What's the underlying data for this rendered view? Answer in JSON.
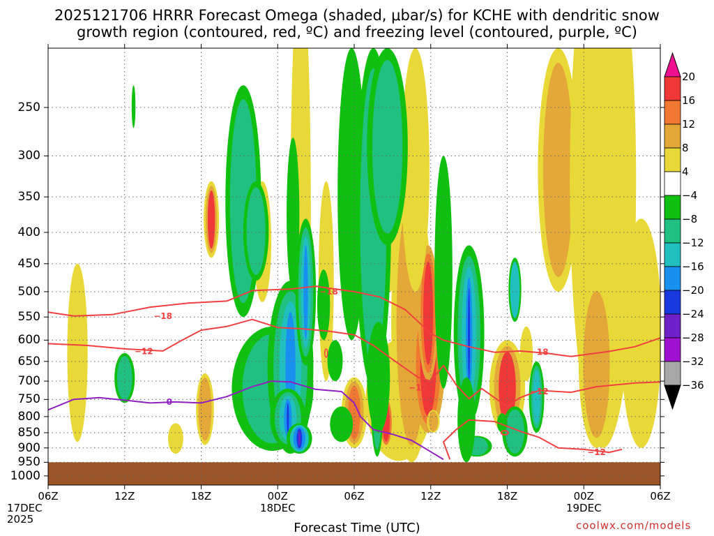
{
  "chart_data": {
    "type": "heatmap",
    "title_line1": "2025121706 HRRR Forecast Omega (shaded, μbar/s) for KCHE with dendritic snow",
    "title_line2": "growth region (contoured, red, ºC) and freezing level (contoured, purple, ºC)",
    "xlabel": "Forecast Time (UTC)",
    "credit": "coolwx.com/models",
    "x_ticks": [
      {
        "label": "06Z",
        "hours": 0,
        "sub": [
          "17DEC",
          "2025"
        ]
      },
      {
        "label": "12Z",
        "hours": 6
      },
      {
        "label": "18Z",
        "hours": 12
      },
      {
        "label": "00Z",
        "hours": 18,
        "sub": [
          "18DEC"
        ]
      },
      {
        "label": "06Z",
        "hours": 24
      },
      {
        "label": "12Z",
        "hours": 30
      },
      {
        "label": "18Z",
        "hours": 36
      },
      {
        "label": "00Z",
        "hours": 42,
        "sub": [
          "19DEC"
        ]
      },
      {
        "label": "06Z",
        "hours": 48
      }
    ],
    "xlim": [
      0,
      48
    ],
    "y_ticks": [
      250,
      300,
      350,
      400,
      450,
      500,
      550,
      600,
      650,
      700,
      750,
      800,
      850,
      900,
      950,
      1000
    ],
    "ylim": [
      200,
      1035
    ],
    "y_scale": "log-pressure",
    "grid": true,
    "colorbar": {
      "labels": [
        "20",
        "16",
        "12",
        "8",
        "4",
        "−4",
        "−8",
        "−12",
        "−16",
        "−20",
        "−24",
        "−28",
        "−32",
        "−36"
      ],
      "colors": [
        "#ee1090",
        "#f03838",
        "#f07830",
        "#e4a838",
        "#e8d838",
        "#ffffff",
        "#10c010",
        "#20c080",
        "#20c0c0",
        "#1890f0",
        "#1838e0",
        "#7020c8",
        "#a010d0",
        "#a8a8a8",
        "#000000"
      ]
    },
    "terrain_pressure": 950,
    "terrain_color": "#9a5428",
    "contour_labels": [
      {
        "value": "−18",
        "x": 9.0,
        "p": 548
      },
      {
        "value": "−18",
        "x": 22.0,
        "p": 500
      },
      {
        "value": "−12",
        "x": 7.5,
        "p": 626
      },
      {
        "value": "0",
        "x": 9.5,
        "p": 757
      },
      {
        "value": "−18",
        "x": 38.5,
        "p": 628
      },
      {
        "value": "−12",
        "x": 29.0,
        "p": 718
      },
      {
        "value": "−12",
        "x": 38.5,
        "p": 728
      },
      {
        "value": "−12",
        "x": 43.0,
        "p": 915
      }
    ],
    "series": [
      {
        "contour": "−18",
        "color": "#f04040",
        "points": [
          [
            0,
            540
          ],
          [
            2,
            548
          ],
          [
            5,
            545
          ],
          [
            8,
            530
          ],
          [
            11,
            522
          ],
          [
            14,
            518
          ],
          [
            16,
            498
          ],
          [
            19,
            495
          ],
          [
            21,
            490
          ],
          [
            24,
            500
          ],
          [
            26,
            510
          ],
          [
            28,
            535
          ],
          [
            30,
            585
          ],
          [
            31,
            600
          ],
          [
            33,
            615
          ],
          [
            35,
            628
          ],
          [
            37,
            625
          ],
          [
            39,
            630
          ],
          [
            41,
            638
          ],
          [
            44,
            626
          ],
          [
            46,
            615
          ],
          [
            48,
            595
          ]
        ]
      },
      {
        "contour": "−12",
        "color": "#f04040",
        "points": [
          [
            0,
            608
          ],
          [
            3,
            612
          ],
          [
            6,
            620
          ],
          [
            9,
            625
          ],
          [
            10.5,
            600
          ],
          [
            12,
            578
          ],
          [
            14,
            570
          ],
          [
            16,
            555
          ],
          [
            18,
            572
          ],
          [
            20,
            575
          ],
          [
            22,
            580
          ],
          [
            24,
            588
          ],
          [
            25.5,
            612
          ],
          [
            27,
            645
          ],
          [
            29,
            690
          ],
          [
            30,
            700
          ],
          [
            31,
            660
          ],
          [
            32,
            710
          ],
          [
            33,
            748
          ],
          [
            34,
            720
          ],
          [
            35,
            745
          ],
          [
            36,
            770
          ],
          [
            37,
            745
          ],
          [
            38.5,
            725
          ],
          [
            41,
            730
          ],
          [
            43,
            715
          ],
          [
            46,
            705
          ],
          [
            48,
            702
          ]
        ]
      },
      {
        "contour": "−12",
        "color": "#f04040",
        "points": [
          [
            31.5,
            940
          ],
          [
            31,
            880
          ],
          [
            32,
            840
          ],
          [
            33,
            810
          ],
          [
            35,
            815
          ],
          [
            37,
            845
          ],
          [
            38.5,
            865
          ],
          [
            40,
            900
          ],
          [
            42,
            905
          ],
          [
            44,
            915
          ],
          [
            45,
            905
          ]
        ]
      },
      {
        "contour": "0",
        "color": "#9020c0",
        "points": [
          [
            0,
            780
          ],
          [
            2,
            750
          ],
          [
            4,
            745
          ],
          [
            6,
            752
          ],
          [
            8,
            760
          ],
          [
            10,
            757
          ],
          [
            12,
            760
          ],
          [
            14,
            742
          ],
          [
            16,
            715
          ],
          [
            17.5,
            700
          ],
          [
            19,
            702
          ],
          [
            21,
            722
          ],
          [
            23,
            728
          ],
          [
            24,
            760
          ],
          [
            24.5,
            800
          ],
          [
            25.5,
            840
          ],
          [
            27,
            855
          ],
          [
            28.5,
            875
          ],
          [
            29.5,
            900
          ],
          [
            31,
            940
          ]
        ]
      }
    ]
  }
}
